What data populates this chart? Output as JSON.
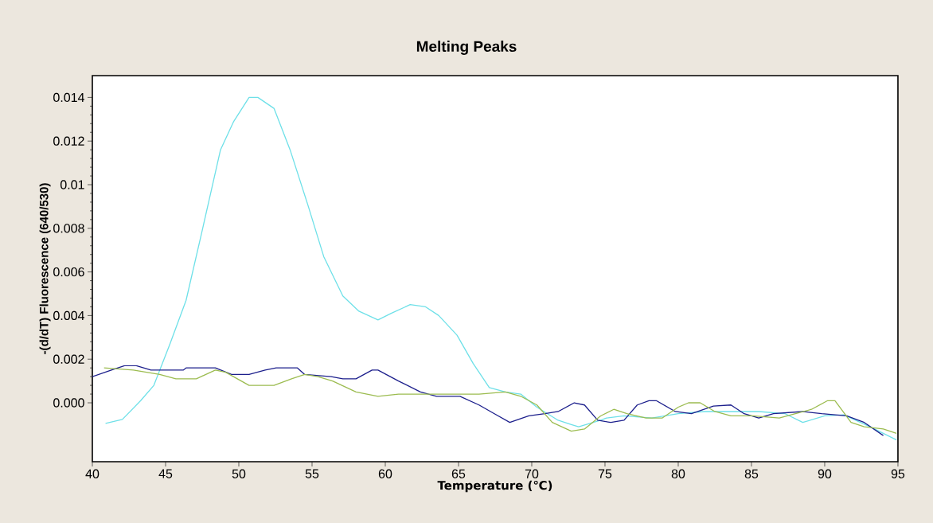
{
  "chart_data": {
    "type": "line",
    "title": "Melting Peaks",
    "xlabel": "Temperature (℃)",
    "ylabel": "-(d/dT) Fluorescence (640/530)",
    "xlim": [
      40,
      95
    ],
    "xticks": [
      40,
      45,
      50,
      55,
      60,
      65,
      70,
      75,
      80,
      85,
      90,
      95
    ],
    "ylim": [
      -0.0027,
      0.015
    ],
    "yticks": [
      {
        "value": 0,
        "label": "0.000"
      },
      0.002,
      0.004,
      0.006,
      0.008,
      0.01,
      0.012,
      0.014
    ],
    "grid": false,
    "legend": false,
    "series": [
      {
        "color": "#6ee0e8",
        "x": [
          40.9,
          42.05,
          43.3,
          44.2,
          45.3,
          46.4,
          47.5,
          48.75,
          49.65,
          50.7,
          51.3,
          52.4,
          53.5,
          54.7,
          55.8,
          57.1,
          58.2,
          59.5,
          60.4,
          61.7,
          62.75,
          63.65,
          64.9,
          66.0,
          67.1,
          68.2,
          69.25,
          70.35,
          71.8,
          72.7,
          73.2,
          74.7,
          75.1,
          76.3,
          78.2,
          80.0,
          81.8,
          85.5,
          87.3,
          88.5,
          90.0,
          91.3,
          93.1,
          94.9
        ],
        "values": [
          -0.00094,
          -0.00076,
          0.0001,
          0.0008,
          0.0027,
          0.0047,
          0.0079,
          0.0116,
          0.0129,
          0.014,
          0.014,
          0.0135,
          0.0116,
          0.0091,
          0.0067,
          0.0049,
          0.0042,
          0.0038,
          0.0041,
          0.0045,
          0.0044,
          0.004,
          0.0031,
          0.0018,
          0.0007,
          0.0005,
          0.0004,
          -0.0002,
          -0.0008,
          -0.001,
          -0.0011,
          -0.0008,
          -0.0007,
          -0.0006,
          -0.0007,
          -0.0005,
          -0.0004,
          -0.0004,
          -0.0005,
          -0.0009,
          -0.0006,
          -0.00055,
          -0.0011,
          -0.0017
        ]
      },
      {
        "color": "#1c1f8c",
        "x": [
          40,
          41.3,
          42.2,
          43,
          44,
          46.2,
          46.4,
          48.4,
          49.5,
          50.7,
          51.8,
          52.55,
          54,
          54.5,
          56.3,
          57.1,
          58,
          59.1,
          59.5,
          60.9,
          62.4,
          63.5,
          65.1,
          66.4,
          67.45,
          68.5,
          69.8,
          70.9,
          71.8,
          72.9,
          73.6,
          74.5,
          75.4,
          76.3,
          77.2,
          78,
          78.5,
          79.8,
          80.9,
          82.4,
          83.6,
          84.5,
          85.5,
          86.5,
          88.5,
          89.8,
          91.5,
          92.7,
          94
        ],
        "values": [
          0.0012,
          0.0015,
          0.0017,
          0.0017,
          0.0015,
          0.0015,
          0.0016,
          0.0016,
          0.0013,
          0.0013,
          0.0015,
          0.0016,
          0.0016,
          0.0013,
          0.0012,
          0.0011,
          0.0011,
          0.0015,
          0.0015,
          0.001,
          0.0005,
          0.0003,
          0.0003,
          -0.0001,
          -0.0005,
          -0.0009,
          -0.0006,
          -0.0005,
          -0.0004,
          0.0,
          -0.0001,
          -0.0008,
          -0.0009,
          -0.0008,
          -0.0001,
          0.0001,
          0.0001,
          -0.0004,
          -0.0005,
          -0.00015,
          -0.0001,
          -0.0005,
          -0.0007,
          -0.0005,
          -0.0004,
          -0.0005,
          -0.0006,
          -0.0009,
          -0.0015
        ]
      },
      {
        "color": "#9cbc50",
        "x": [
          40.8,
          42.8,
          44.6,
          45.7,
          47.1,
          48.4,
          49.1,
          50.7,
          52.4,
          53.6,
          54.5,
          55.4,
          56.4,
          58,
          59.5,
          60.9,
          63.5,
          66.4,
          68.2,
          69.25,
          70.35,
          71.4,
          72.7,
          73.6,
          74.7,
          75.6,
          76.5,
          77.8,
          78.9,
          80,
          80.7,
          81.5,
          82.5,
          83.6,
          85.1,
          86.9,
          88,
          89.1,
          90.2,
          90.7,
          91.8,
          92.7,
          94,
          94.9
        ],
        "values": [
          0.0016,
          0.0015,
          0.0013,
          0.0011,
          0.0011,
          0.0015,
          0.0014,
          0.0008,
          0.0008,
          0.0011,
          0.0013,
          0.0012,
          0.001,
          0.0005,
          0.0003,
          0.0004,
          0.0004,
          0.0004,
          0.0005,
          0.0003,
          -0.0001,
          -0.0009,
          -0.0013,
          -0.0012,
          -0.0006,
          -0.0003,
          -0.0005,
          -0.0007,
          -0.0007,
          -0.0002,
          0.0,
          0.0,
          -0.0004,
          -0.0006,
          -0.0006,
          -0.0007,
          -0.0005,
          -0.0003,
          0.0001,
          0.0001,
          -0.0009,
          -0.0011,
          -0.0012,
          -0.0014
        ]
      }
    ]
  }
}
